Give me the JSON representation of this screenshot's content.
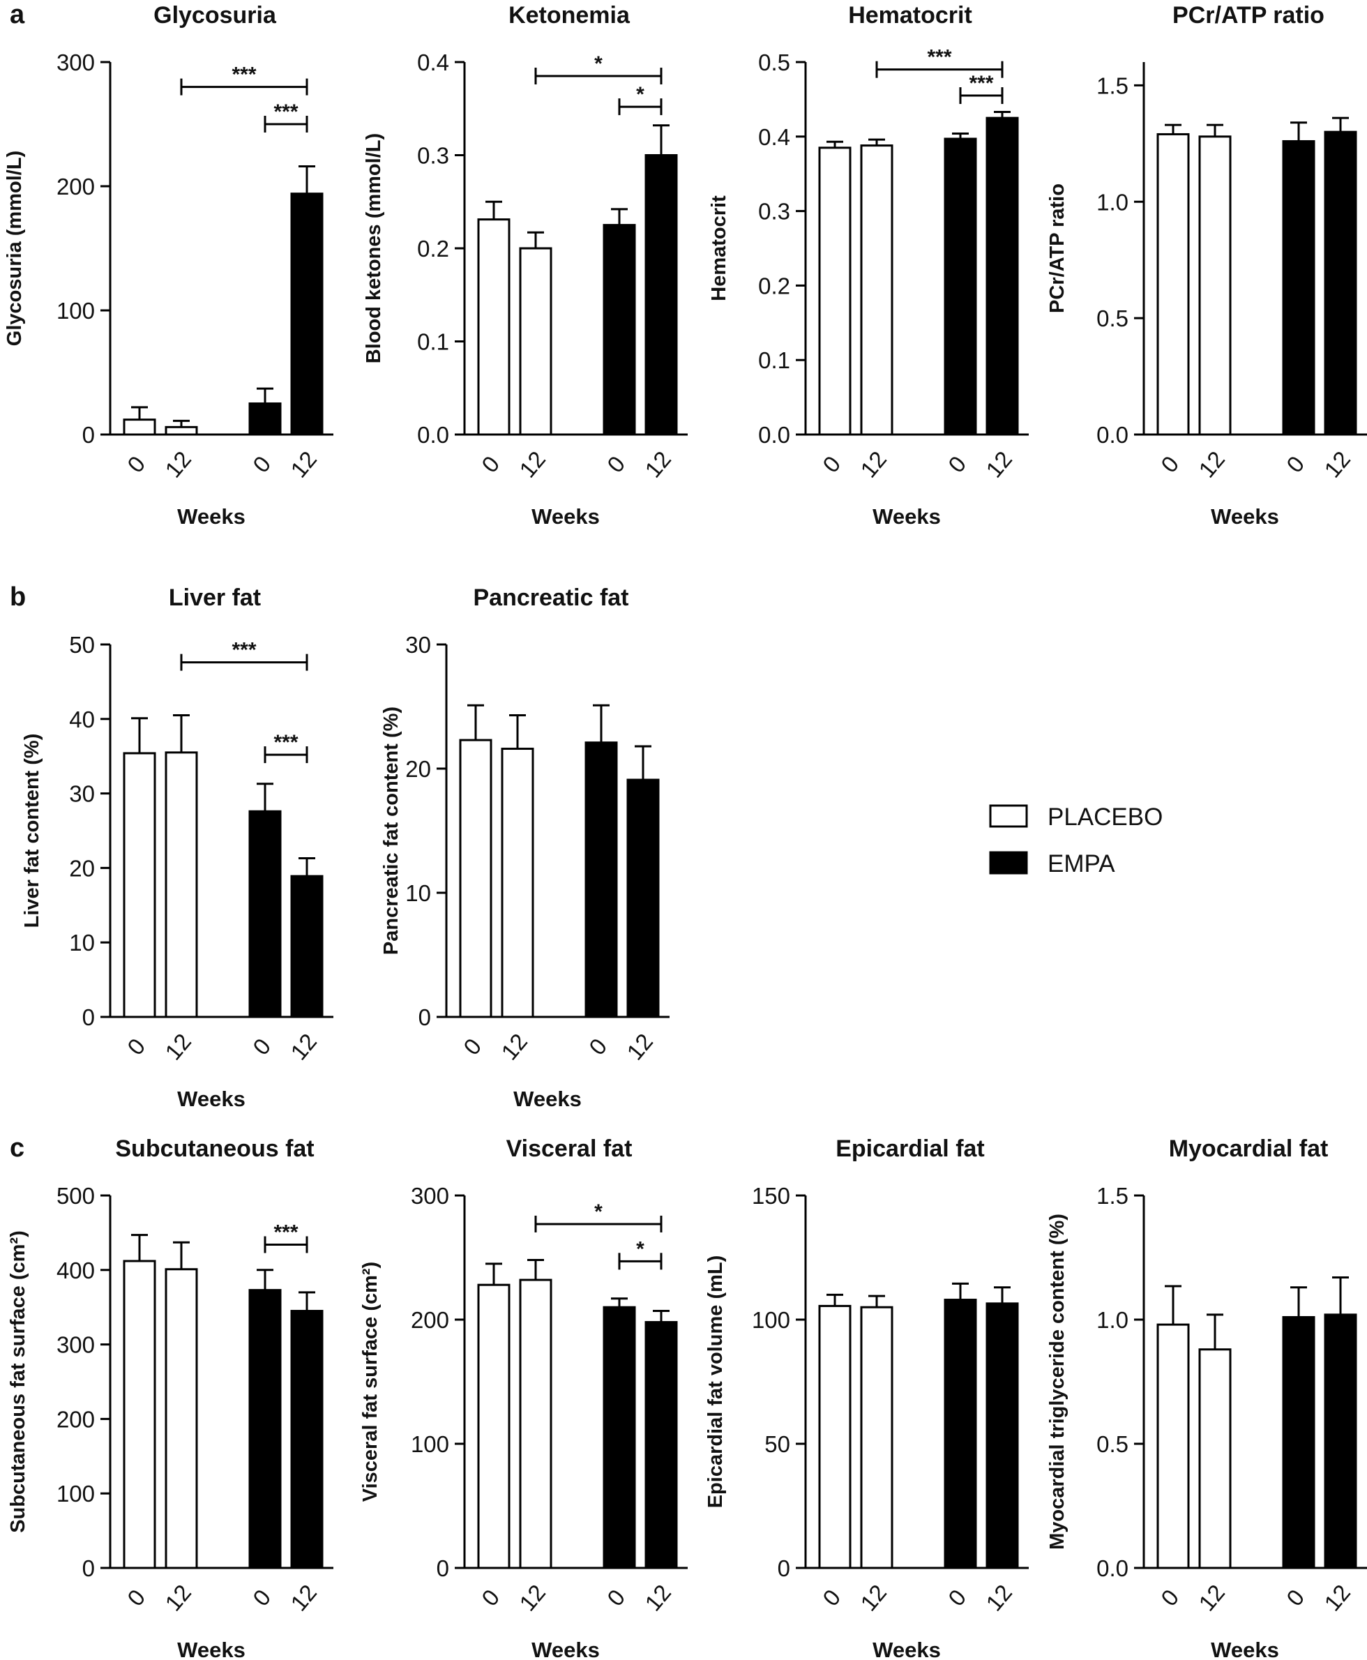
{
  "figure": {
    "legend": [
      {
        "label": "PLACEBO",
        "color": "#ffffff"
      },
      {
        "label": "EMPA",
        "color": "#000000"
      }
    ]
  },
  "chart_data": [
    {
      "panel": "a",
      "type": "bar",
      "title": "Glycosuria",
      "ylabel": "Glycosuria (mmol/L)",
      "xlabel": "Weeks",
      "ylim": [
        0,
        300
      ],
      "yticks": [
        0,
        100,
        200,
        300
      ],
      "ytick_labels": [
        "0",
        "100",
        "200",
        "300"
      ],
      "categories": [
        "0",
        "12",
        "0",
        "12"
      ],
      "groups": [
        "PLACEBO",
        "PLACEBO",
        "EMPA",
        "EMPA"
      ],
      "values": [
        12,
        6,
        25,
        194
      ],
      "errors": [
        10,
        5,
        12,
        22
      ],
      "significance": [
        {
          "from": 1,
          "to": 3,
          "label": "***",
          "y": 280
        },
        {
          "from": 2,
          "to": 3,
          "label": "***",
          "y": 250
        }
      ]
    },
    {
      "panel": "",
      "type": "bar",
      "title": "Ketonemia",
      "ylabel": "Blood ketones (mmol/L)",
      "xlabel": "Weeks",
      "ylim": [
        0,
        0.4
      ],
      "yticks": [
        0,
        0.1,
        0.2,
        0.3,
        0.4
      ],
      "ytick_labels": [
        "0.0",
        "0.1",
        "0.2",
        "0.3",
        "0.4"
      ],
      "categories": [
        "0",
        "12",
        "0",
        "12"
      ],
      "groups": [
        "PLACEBO",
        "PLACEBO",
        "EMPA",
        "EMPA"
      ],
      "values": [
        0.231,
        0.2,
        0.225,
        0.3
      ],
      "errors": [
        0.019,
        0.017,
        0.017,
        0.032
      ],
      "significance": [
        {
          "from": 1,
          "to": 3,
          "label": "*",
          "y": 0.385
        },
        {
          "from": 2,
          "to": 3,
          "label": "*",
          "y": 0.352
        }
      ]
    },
    {
      "panel": "",
      "type": "bar",
      "title": "Hematocrit",
      "ylabel": "Hematocrit",
      "xlabel": "Weeks",
      "ylim": [
        0,
        0.5
      ],
      "yticks": [
        0,
        0.1,
        0.2,
        0.3,
        0.4,
        0.5
      ],
      "ytick_labels": [
        "0.0",
        "0.1",
        "0.2",
        "0.3",
        "0.4",
        "0.5"
      ],
      "categories": [
        "0",
        "12",
        "0",
        "12"
      ],
      "groups": [
        "PLACEBO",
        "PLACEBO",
        "EMPA",
        "EMPA"
      ],
      "values": [
        0.385,
        0.388,
        0.397,
        0.425
      ],
      "errors": [
        0.008,
        0.008,
        0.007,
        0.008
      ],
      "significance": [
        {
          "from": 1,
          "to": 3,
          "label": "***",
          "y": 0.49
        },
        {
          "from": 2,
          "to": 3,
          "label": "***",
          "y": 0.455
        }
      ]
    },
    {
      "panel": "",
      "type": "bar",
      "title": "PCr/ATP ratio",
      "ylabel": "PCr/ATP ratio",
      "xlabel": "Weeks",
      "ylim": [
        0,
        1.6
      ],
      "yticks": [
        0,
        0.5,
        1.0,
        1.5
      ],
      "ytick_labels": [
        "0.0",
        "0.5",
        "1.0",
        "1.5"
      ],
      "categories": [
        "0",
        "12",
        "0",
        "12"
      ],
      "groups": [
        "PLACEBO",
        "PLACEBO",
        "EMPA",
        "EMPA"
      ],
      "values": [
        1.29,
        1.28,
        1.26,
        1.3
      ],
      "errors": [
        0.04,
        0.05,
        0.08,
        0.06
      ],
      "significance": []
    },
    {
      "panel": "b",
      "type": "bar",
      "title": "Liver fat",
      "ylabel": "Liver fat content (%)",
      "xlabel": "Weeks",
      "ylim": [
        0,
        50
      ],
      "yticks": [
        0,
        10,
        20,
        30,
        40,
        50
      ],
      "ytick_labels": [
        "0",
        "10",
        "20",
        "30",
        "40",
        "50"
      ],
      "categories": [
        "0",
        "12",
        "0",
        "12"
      ],
      "groups": [
        "PLACEBO",
        "PLACEBO",
        "EMPA",
        "EMPA"
      ],
      "values": [
        35.4,
        35.5,
        27.6,
        18.9
      ],
      "errors": [
        4.7,
        5.0,
        3.7,
        2.4
      ],
      "significance": [
        {
          "from": 1,
          "to": 3,
          "label": "***",
          "y": 47.6
        },
        {
          "from": 2,
          "to": 3,
          "label": "***",
          "y": 35.2
        }
      ]
    },
    {
      "panel": "",
      "type": "bar",
      "title": "Pancreatic fat",
      "ylabel": "Pancreatic fat content (%)",
      "xlabel": "Weeks",
      "ylim": [
        0,
        30
      ],
      "yticks": [
        0,
        10,
        20,
        30
      ],
      "ytick_labels": [
        "0",
        "10",
        "20",
        "30"
      ],
      "categories": [
        "0",
        "12",
        "0",
        "12"
      ],
      "groups": [
        "PLACEBO",
        "PLACEBO",
        "EMPA",
        "EMPA"
      ],
      "values": [
        22.3,
        21.6,
        22.1,
        19.1
      ],
      "errors": [
        2.8,
        2.7,
        3.0,
        2.7
      ],
      "significance": []
    },
    {
      "panel": "c",
      "type": "bar",
      "title": "Subcutaneous fat",
      "ylabel": "Subcutaneous fat surface (cm²)",
      "xlabel": "Weeks",
      "ylim": [
        0,
        500
      ],
      "yticks": [
        0,
        100,
        200,
        300,
        400,
        500
      ],
      "ytick_labels": [
        "0",
        "100",
        "200",
        "300",
        "400",
        "500"
      ],
      "categories": [
        "0",
        "12",
        "0",
        "12"
      ],
      "groups": [
        "PLACEBO",
        "PLACEBO",
        "EMPA",
        "EMPA"
      ],
      "values": [
        412,
        401,
        373,
        345
      ],
      "errors": [
        35,
        36,
        27,
        25
      ],
      "significance": [
        {
          "from": 2,
          "to": 3,
          "label": "***",
          "y": 434
        }
      ]
    },
    {
      "panel": "",
      "type": "bar",
      "title": "Visceral fat",
      "ylabel": "Visceral fat surface (cm²)",
      "xlabel": "Weeks",
      "ylim": [
        0,
        300
      ],
      "yticks": [
        0,
        100,
        200,
        300
      ],
      "ytick_labels": [
        "0",
        "100",
        "200",
        "300"
      ],
      "categories": [
        "0",
        "12",
        "0",
        "12"
      ],
      "groups": [
        "PLACEBO",
        "PLACEBO",
        "EMPA",
        "EMPA"
      ],
      "values": [
        228,
        232,
        210,
        198
      ],
      "errors": [
        17,
        16,
        7,
        9
      ],
      "significance": [
        {
          "from": 1,
          "to": 3,
          "label": "*",
          "y": 277
        },
        {
          "from": 2,
          "to": 3,
          "label": "*",
          "y": 247
        }
      ]
    },
    {
      "panel": "",
      "type": "bar",
      "title": "Epicardial fat",
      "ylabel": "Epicardial fat volume (mL)",
      "xlabel": "Weeks",
      "ylim": [
        0,
        150
      ],
      "yticks": [
        0,
        50,
        100,
        150
      ],
      "ytick_labels": [
        "0",
        "50",
        "100",
        "150"
      ],
      "categories": [
        "0",
        "12",
        "0",
        "12"
      ],
      "groups": [
        "PLACEBO",
        "PLACEBO",
        "EMPA",
        "EMPA"
      ],
      "values": [
        105.5,
        105,
        108,
        106.5
      ],
      "errors": [
        4.5,
        4.5,
        6.5,
        6.5
      ],
      "significance": []
    },
    {
      "panel": "",
      "type": "bar",
      "title": "Myocardial fat",
      "ylabel": "Myocardial triglyceride content (%)",
      "xlabel": "Weeks",
      "ylim": [
        0,
        1.5
      ],
      "yticks": [
        0,
        0.5,
        1.0,
        1.5
      ],
      "ytick_labels": [
        "0.0",
        "0.5",
        "1.0",
        "1.5"
      ],
      "categories": [
        "0",
        "12",
        "0",
        "12"
      ],
      "groups": [
        "PLACEBO",
        "PLACEBO",
        "EMPA",
        "EMPA"
      ],
      "values": [
        0.98,
        0.88,
        1.01,
        1.02
      ],
      "errors": [
        0.155,
        0.14,
        0.12,
        0.15
      ],
      "significance": []
    }
  ]
}
